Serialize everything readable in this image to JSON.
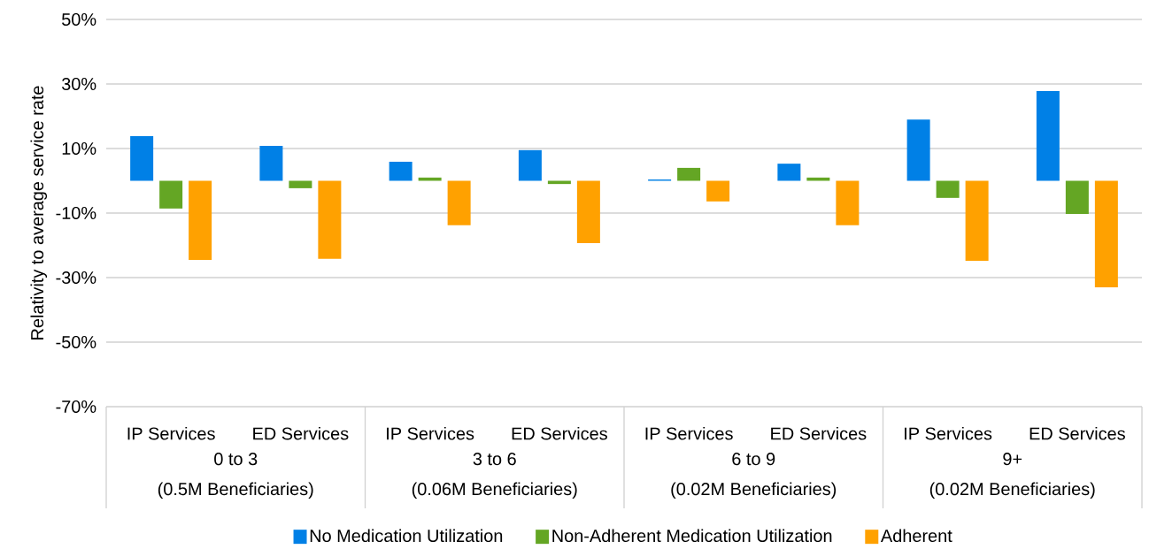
{
  "chart_data": {
    "type": "bar",
    "ylabel": "Relativity to average service rate",
    "categories": [
      "IP Services",
      "ED Services",
      "IP Services",
      "ED Services",
      "IP Services",
      "ED Services",
      "IP Services",
      "ED Services"
    ],
    "series": [
      {
        "name": "No Medication Utilization",
        "color": "#0080e6",
        "values": [
          13.8,
          10.8,
          5.9,
          9.5,
          0.4,
          5.3,
          19.0,
          27.8
        ]
      },
      {
        "name": "Non-Adherent Medication Utilization",
        "color": "#64a624",
        "values": [
          -8.6,
          -2.3,
          1.0,
          -1.0,
          4.0,
          1.0,
          -5.3,
          -10.3
        ]
      },
      {
        "name": "Adherent",
        "color": "#ffa100",
        "values": [
          -24.5,
          -24.2,
          -13.8,
          -19.3,
          -6.4,
          -13.8,
          -24.8,
          -33.0
        ]
      }
    ],
    "ylim": [
      -70,
      50
    ],
    "yticks": [
      {
        "value": -70,
        "label": "-70%"
      },
      {
        "value": -50,
        "label": "-50%"
      },
      {
        "value": -30,
        "label": "-30%"
      },
      {
        "value": -10,
        "label": "-10%"
      },
      {
        "value": 10,
        "label": "10%"
      },
      {
        "value": 30,
        "label": "30%"
      },
      {
        "value": 50,
        "label": "50%"
      }
    ],
    "grid": "y",
    "legend": "bottom",
    "annotations": [
      "0 to 3",
      "(0.5M Beneficiaries)",
      "3 to 6",
      "(0.06M Beneficiaries)",
      "6 to 9",
      "(0.02M Beneficiaries)",
      "9+",
      "(0.02M Beneficiaries)"
    ]
  }
}
